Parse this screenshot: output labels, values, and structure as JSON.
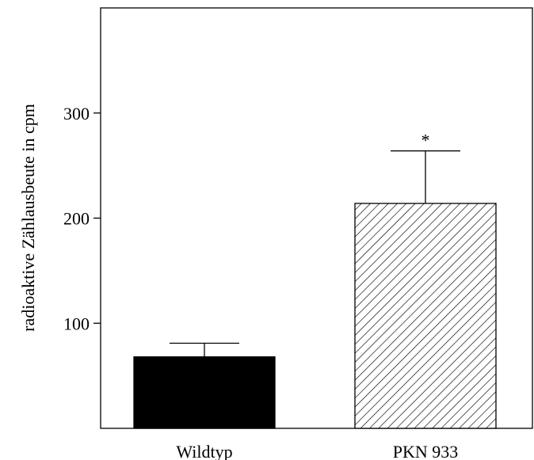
{
  "chart_data": {
    "type": "bar",
    "title": "",
    "xlabel": "",
    "ylabel": "radioaktive Zählausbeute in cpm",
    "ylim": [
      0,
      400
    ],
    "yticks": [
      100,
      200,
      300
    ],
    "categories": [
      "Wildtyp",
      "PKN 933"
    ],
    "values": [
      68,
      214
    ],
    "errors": [
      13,
      50
    ],
    "annotations": [
      "",
      "*"
    ],
    "bar_fills": [
      "solid-black",
      "diagonal-hatch"
    ],
    "grid": false,
    "legend": "none"
  },
  "colors": {
    "bar_solid": "#000000",
    "axis": "#000000",
    "background": "#ffffff"
  }
}
